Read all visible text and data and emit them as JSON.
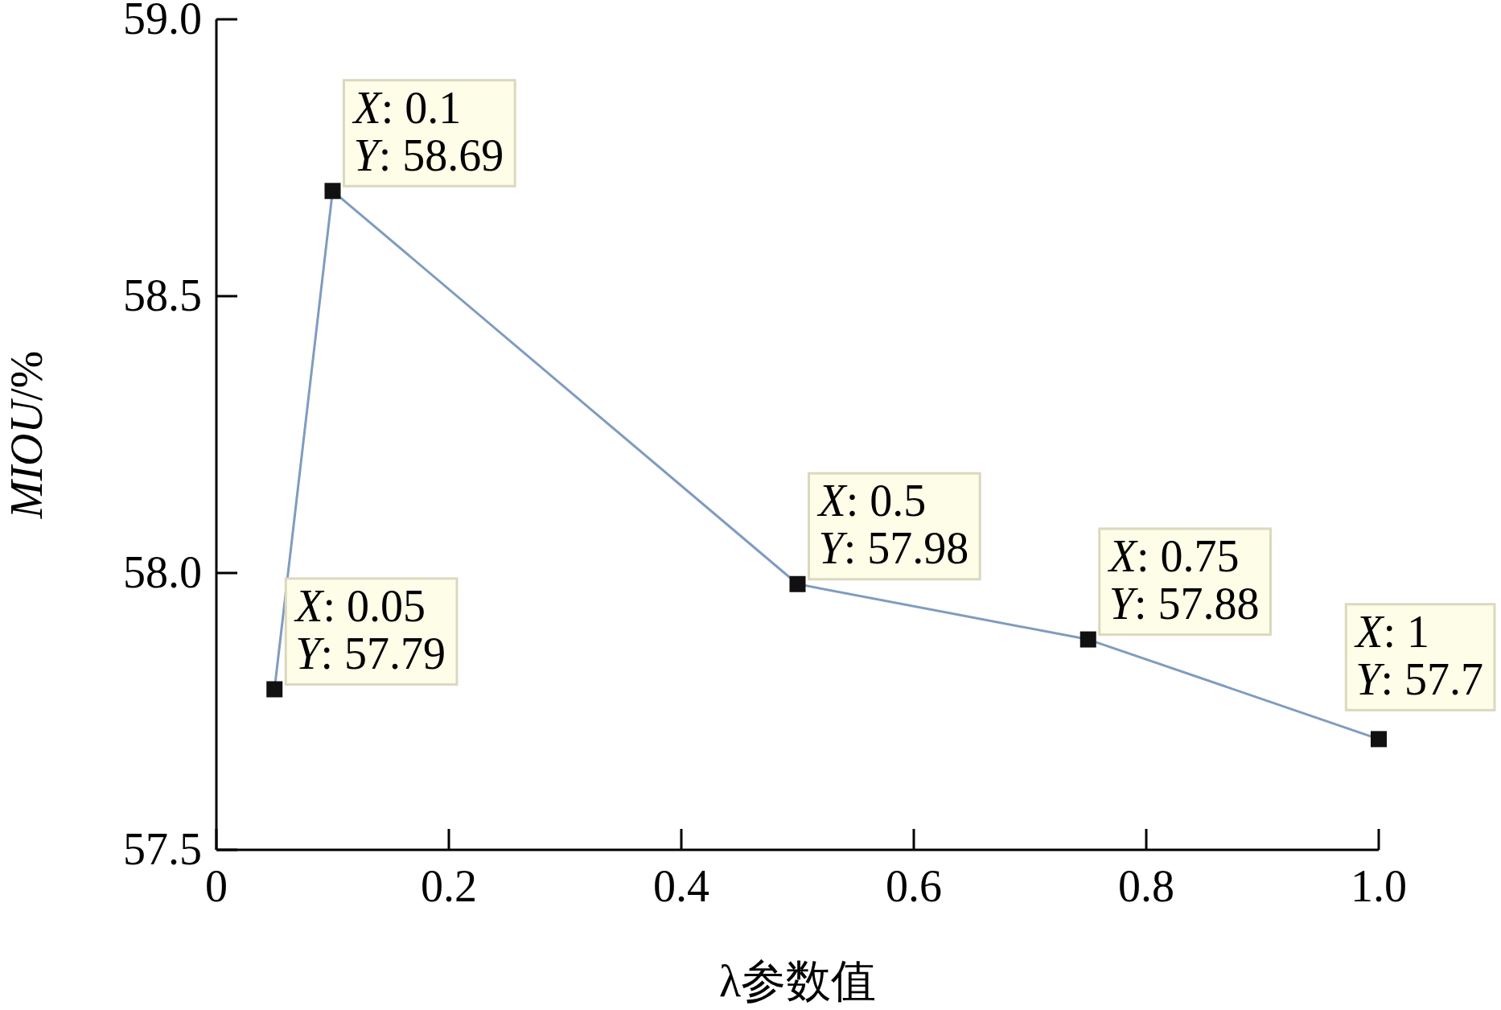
{
  "chart_data": {
    "type": "line",
    "xlabel": "λ参数值",
    "ylabel": "MIOU/%",
    "x": [
      0.05,
      0.1,
      0.5,
      0.75,
      1
    ],
    "series": [
      {
        "color": "#7f9cc0",
        "values": [
          57.79,
          58.69,
          57.98,
          57.88,
          57.7
        ]
      }
    ],
    "xlim": [
      0,
      1
    ],
    "ylim": [
      57.5,
      59
    ],
    "xticks": [
      0,
      0.2,
      0.4,
      0.6,
      0.8,
      {
        "value": 1,
        "label": "1.0"
      }
    ],
    "yticks": [
      {
        "value": 57.5,
        "label": "57.5"
      },
      {
        "value": 58,
        "label": "58.0"
      },
      {
        "value": 58.5,
        "label": "58.5"
      },
      {
        "value": 59,
        "label": "59.0"
      }
    ],
    "marker": "square",
    "grid": false,
    "annotations": [
      {
        "text": "X: 0.05\nY: 57.79",
        "x": 0.05,
        "y": 57.79
      },
      {
        "text": "X: 0.1\nY: 58.69",
        "x": 0.1,
        "y": 58.69
      },
      {
        "text": "X: 0.5\nY: 57.98",
        "x": 0.5,
        "y": 57.98
      },
      {
        "text": "X: 0.75\nY: 57.88",
        "x": 0.75,
        "y": 57.88
      },
      {
        "text": "X: 1\nY: 57.7",
        "x": 1,
        "y": 57.7
      }
    ]
  }
}
